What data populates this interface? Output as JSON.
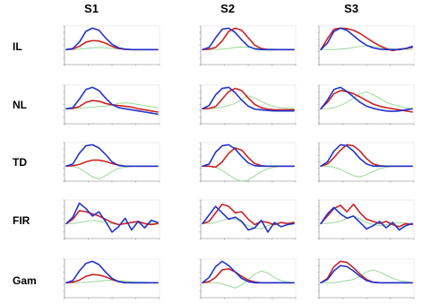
{
  "chart_data": {
    "type": "line",
    "columns": [
      "S1",
      "S2",
      "S3"
    ],
    "rows": [
      "IL",
      "NL",
      "TD",
      "FIR",
      "Gam"
    ],
    "colors": {
      "blue": "#2233cc",
      "red": "#cc2222",
      "green": "#9ad89a"
    },
    "panels": [
      [
        {
          "blue": [
            0,
            0.05,
            0.35,
            0.85,
            1,
            0.9,
            0.55,
            0.25,
            0.08,
            0.02,
            0,
            0,
            0,
            0,
            0
          ],
          "red": [
            0,
            0.03,
            0.15,
            0.35,
            0.42,
            0.4,
            0.3,
            0.15,
            0.05,
            0.01,
            0,
            0,
            0,
            0,
            0
          ],
          "green": [
            0,
            0,
            0.02,
            0.05,
            0.08,
            0.1,
            0.08,
            0.05,
            0.03,
            0.02,
            0.01,
            0,
            0,
            0,
            0
          ]
        },
        {
          "blue": [
            0,
            0.1,
            0.55,
            0.95,
            1,
            0.8,
            0.45,
            0.15,
            0.03,
            0,
            0,
            0,
            0,
            0,
            0
          ],
          "red": [
            0,
            0.02,
            0.1,
            0.4,
            0.85,
            1,
            0.9,
            0.55,
            0.2,
            0.05,
            0,
            0,
            0,
            0,
            0
          ],
          "green": [
            0,
            0,
            0,
            0.02,
            0.05,
            0.1,
            0.12,
            0.1,
            0.07,
            0.05,
            0.03,
            0.02,
            0.01,
            0,
            0
          ]
        },
        {
          "blue": [
            0,
            0.3,
            0.85,
            1,
            0.9,
            0.65,
            0.4,
            0.2,
            0.08,
            0.02,
            0,
            0,
            0,
            0.05,
            0.15
          ],
          "red": [
            0,
            0.5,
            0.95,
            1,
            0.98,
            0.9,
            0.75,
            0.55,
            0.35,
            0.18,
            0.05,
            -0.05,
            0.02,
            0.05,
            0.1
          ],
          "green": [
            0,
            0,
            0,
            0.02,
            0.05,
            0.1,
            0.15,
            0.18,
            0.15,
            0.1,
            0.05,
            0.03,
            0.02,
            0.01,
            0
          ]
        }
      ],
      [
        {
          "blue": [
            0,
            0.05,
            0.45,
            0.9,
            1,
            0.85,
            0.5,
            0.2,
            0.05,
            0,
            -0.05,
            -0.1,
            -0.15,
            -0.2,
            -0.25
          ],
          "red": [
            0,
            0.02,
            0.1,
            0.3,
            0.38,
            0.35,
            0.25,
            0.18,
            0.15,
            0.12,
            0.08,
            0,
            -0.05,
            -0.1,
            -0.15
          ],
          "green": [
            0,
            0,
            0.02,
            0.05,
            0.08,
            0.1,
            0.12,
            0.18,
            0.25,
            0.28,
            0.25,
            0.2,
            0.15,
            0.1,
            0.05
          ]
        },
        {
          "blue": [
            0,
            0.15,
            0.65,
            0.95,
            1,
            0.75,
            0.4,
            0.12,
            -0.02,
            -0.05,
            -0.08,
            -0.1,
            -0.1,
            -0.1,
            -0.1
          ],
          "red": [
            0,
            0.02,
            0.1,
            0.45,
            0.8,
            0.95,
            0.85,
            0.5,
            0.2,
            0.05,
            -0.02,
            -0.05,
            -0.05,
            -0.05,
            -0.05
          ],
          "green": [
            0,
            0,
            0.02,
            0.08,
            0.15,
            0.25,
            0.45,
            0.6,
            0.5,
            0.35,
            0.2,
            0.1,
            0.05,
            0.02,
            0
          ]
        },
        {
          "blue": [
            0,
            0.4,
            0.9,
            1,
            0.8,
            0.55,
            0.3,
            0.12,
            0.02,
            -0.05,
            -0.1,
            -0.12,
            -0.1,
            -0.05,
            0
          ],
          "red": [
            0,
            0.3,
            0.7,
            0.85,
            0.8,
            0.7,
            0.55,
            0.38,
            0.22,
            0.12,
            0.05,
            0,
            -0.05,
            -0.1,
            -0.15
          ],
          "green": [
            0,
            0,
            0.05,
            0.15,
            0.3,
            0.5,
            0.7,
            0.8,
            0.65,
            0.5,
            0.3,
            0.2,
            0.12,
            0.05,
            0
          ]
        }
      ],
      [
        {
          "blue": [
            0,
            0.1,
            0.6,
            0.95,
            1,
            0.85,
            0.55,
            0.2,
            0.03,
            0,
            0,
            0,
            0,
            0,
            0
          ],
          "red": [
            0,
            0.02,
            0.08,
            0.2,
            0.28,
            0.28,
            0.22,
            0.12,
            0.05,
            0,
            0,
            0,
            0,
            0,
            0
          ],
          "green": [
            0,
            0,
            -0.1,
            -0.3,
            -0.5,
            -0.6,
            -0.45,
            -0.25,
            -0.1,
            -0.05,
            0,
            0,
            0,
            0,
            0
          ]
        },
        {
          "blue": [
            0,
            0.1,
            0.65,
            0.95,
            1,
            0.8,
            0.45,
            0.15,
            0.02,
            0,
            0,
            0,
            0,
            0,
            0
          ],
          "red": [
            0,
            0,
            -0.05,
            0.2,
            0.6,
            0.85,
            0.75,
            0.4,
            0.12,
            0.02,
            0,
            0,
            0,
            0,
            0
          ],
          "green": [
            0,
            0,
            -0.05,
            -0.2,
            -0.4,
            -0.6,
            -0.7,
            -0.65,
            -0.45,
            -0.25,
            -0.12,
            -0.05,
            0,
            0,
            0
          ]
        },
        {
          "blue": [
            0,
            0.2,
            0.7,
            1,
            0.95,
            0.7,
            0.35,
            0.1,
            0,
            0,
            0,
            0,
            0,
            0,
            0
          ],
          "red": [
            0,
            0.1,
            0.4,
            0.75,
            1,
            0.95,
            0.7,
            0.35,
            0.1,
            0.02,
            0,
            0,
            0,
            0,
            0
          ],
          "green": [
            0,
            0,
            -0.05,
            -0.15,
            -0.3,
            -0.45,
            -0.5,
            -0.4,
            -0.25,
            -0.12,
            -0.05,
            0,
            0,
            0,
            0
          ]
        }
      ],
      [
        {
          "blue": [
            0,
            0.3,
            0.95,
            0.7,
            0.35,
            0.55,
            0.1,
            -0.4,
            -0.15,
            0.25,
            -0.3,
            0.1,
            -0.2,
            0.15,
            0.05
          ],
          "red": [
            0,
            0.2,
            0.6,
            0.55,
            0.45,
            0.35,
            0.2,
            0.05,
            -0.05,
            0,
            0.05,
            0.1,
            0,
            -0.05,
            0
          ],
          "green": [
            0,
            0,
            0.05,
            0.1,
            0.15,
            0.1,
            0.05,
            0,
            -0.05,
            0,
            0.05,
            0.05,
            0,
            0,
            0
          ]
        },
        {
          "blue": [
            0,
            0.4,
            0.8,
            0.5,
            0.2,
            0.3,
            0.1,
            -0.3,
            -0.2,
            0.15,
            -0.4,
            0.05,
            -0.15,
            -0.05,
            0
          ],
          "red": [
            0,
            0.1,
            0.5,
            0.9,
            0.8,
            0.5,
            0.55,
            0.2,
            -0.05,
            0.1,
            0.05,
            -0.05,
            0.05,
            0,
            0.05
          ],
          "green": [
            0,
            0,
            0.05,
            0.15,
            0.25,
            0.2,
            0.05,
            -0.1,
            -0.2,
            -0.25,
            -0.1,
            0,
            0.05,
            0,
            0
          ]
        },
        {
          "blue": [
            0,
            0.45,
            0.75,
            0.45,
            0.25,
            0.35,
            0.05,
            -0.25,
            -0.1,
            0.1,
            -0.2,
            0.05,
            -0.3,
            -0.1,
            0
          ],
          "red": [
            0,
            0.35,
            0.7,
            0.85,
            0.55,
            0.9,
            0.5,
            0.2,
            0.1,
            0,
            0.1,
            -0.05,
            -0.15,
            0,
            -0.05
          ],
          "green": [
            0,
            0,
            0.05,
            0.1,
            0.25,
            0.35,
            0.2,
            0.05,
            -0.05,
            -0.1,
            -0.05,
            0,
            0.05,
            0,
            0
          ]
        }
      ],
      [
        {
          "blue": [
            0,
            0.1,
            0.55,
            0.9,
            1,
            0.85,
            0.5,
            0.2,
            0.05,
            0,
            0,
            0,
            0,
            0,
            0
          ],
          "red": [
            0,
            0.02,
            0.12,
            0.3,
            0.38,
            0.36,
            0.28,
            0.15,
            0.05,
            0.01,
            0,
            0,
            0,
            0,
            0
          ],
          "green": [
            0,
            0,
            0,
            0.02,
            0.05,
            0.08,
            0.1,
            0.12,
            0.1,
            0.08,
            0.05,
            0.03,
            0.02,
            0.01,
            0
          ]
        },
        {
          "blue": [
            0,
            0.25,
            0.75,
            1,
            0.8,
            0.5,
            0.2,
            0.05,
            0,
            0,
            0,
            0,
            0,
            0,
            0
          ],
          "red": [
            0,
            0.05,
            0.25,
            0.6,
            0.65,
            0.5,
            0.3,
            0.12,
            0.03,
            0,
            0,
            0,
            0,
            0,
            0
          ],
          "green": [
            0,
            0,
            0,
            -0.05,
            -0.15,
            -0.25,
            -0.1,
            0.15,
            0.4,
            0.55,
            0.45,
            0.25,
            0.1,
            0.03,
            0
          ]
        },
        {
          "blue": [
            0,
            0.15,
            0.55,
            0.8,
            0.75,
            0.55,
            0.3,
            0.1,
            0.02,
            0,
            0,
            0,
            0,
            0,
            0
          ],
          "red": [
            0,
            0.2,
            0.75,
            1,
            0.95,
            0.7,
            0.4,
            0.15,
            0.03,
            0,
            0,
            0,
            0,
            0,
            0
          ],
          "green": [
            0,
            0,
            0,
            0.05,
            0.1,
            0.15,
            0.3,
            0.5,
            0.6,
            0.5,
            0.35,
            0.2,
            0.1,
            0.05,
            0
          ]
        }
      ]
    ]
  }
}
